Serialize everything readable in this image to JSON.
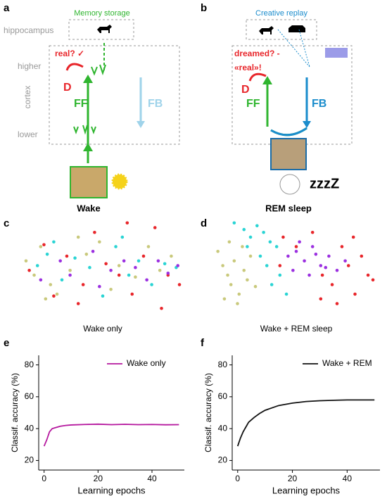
{
  "panel_labels": [
    "a",
    "b",
    "c",
    "d",
    "e",
    "f"
  ],
  "diagram_a": {
    "hippocampus": "hippocampus",
    "higher": "higher",
    "cortex": "cortex",
    "lower": "lower",
    "memory": "Memory storage",
    "real": "real? ✓",
    "d": "D",
    "ff": "FF",
    "fb": "FB",
    "caption": "Wake"
  },
  "diagram_b": {
    "replay": "Creative replay",
    "dreamed": "dreamed? -",
    "real": "«real»!",
    "d": "D",
    "ff": "FF",
    "fb": "FB",
    "caption": "REM sleep",
    "sleep": "zzzZ"
  },
  "chart_data": [
    {
      "type": "scatter",
      "caption": "Wake only",
      "xlim": [
        0,
        100
      ],
      "ylim": [
        0,
        100
      ],
      "series": [
        {
          "color": "#c9c97c",
          "x": [
            3,
            8,
            12,
            18,
            22,
            30,
            40,
            48,
            55,
            60,
            70,
            78,
            85,
            92,
            15,
            35
          ],
          "y": [
            55,
            40,
            70,
            30,
            20,
            45,
            62,
            75,
            25,
            50,
            38,
            70,
            45,
            60,
            15,
            80
          ]
        },
        {
          "color": "#2ad4d4",
          "x": [
            10,
            16,
            25,
            33,
            42,
            50,
            58,
            66,
            72,
            80,
            88,
            95,
            20,
            62
          ],
          "y": [
            50,
            62,
            35,
            58,
            48,
            18,
            70,
            40,
            55,
            30,
            52,
            48,
            75,
            80
          ]
        },
        {
          "color": "#e8262b",
          "x": [
            5,
            14,
            20,
            28,
            38,
            45,
            52,
            60,
            65,
            75,
            82,
            90,
            97,
            35,
            68,
            86
          ],
          "y": [
            45,
            72,
            18,
            60,
            30,
            85,
            52,
            40,
            95,
            60,
            90,
            40,
            30,
            10,
            20,
            5
          ]
        },
        {
          "color": "#9b30e0",
          "x": [
            12,
            24,
            30,
            44,
            55,
            63,
            70,
            77,
            84,
            90,
            96,
            48
          ],
          "y": [
            35,
            55,
            40,
            65,
            45,
            55,
            48,
            35,
            55,
            42,
            50,
            28
          ]
        }
      ]
    },
    {
      "type": "scatter",
      "caption": "Wake + REM sleep",
      "xlim": [
        0,
        100
      ],
      "ylim": [
        0,
        100
      ],
      "series": [
        {
          "color": "#c9c97c",
          "x": [
            2,
            5,
            8,
            10,
            12,
            15,
            18,
            20,
            6,
            14,
            22,
            25,
            9,
            17
          ],
          "y": [
            65,
            50,
            40,
            30,
            55,
            20,
            45,
            35,
            15,
            10,
            60,
            28,
            75,
            70
          ]
        },
        {
          "color": "#2ad4d4",
          "x": [
            12,
            18,
            22,
            26,
            30,
            34,
            38,
            28,
            20,
            40,
            44,
            35,
            32
          ],
          "y": [
            95,
            88,
            80,
            92,
            85,
            75,
            70,
            60,
            70,
            40,
            20,
            30,
            50
          ]
        },
        {
          "color": "#9b30e0",
          "x": [
            45,
            50,
            55,
            60,
            65,
            70,
            75,
            80,
            48,
            58,
            68,
            52,
            62
          ],
          "y": [
            60,
            65,
            55,
            70,
            50,
            60,
            45,
            55,
            45,
            40,
            48,
            75,
            62
          ]
        },
        {
          "color": "#e8262b",
          "x": [
            42,
            50,
            60,
            66,
            72,
            78,
            82,
            86,
            90,
            94,
            97,
            75,
            85,
            65,
            40
          ],
          "y": [
            80,
            70,
            85,
            40,
            30,
            70,
            50,
            20,
            60,
            40,
            35,
            10,
            80,
            15,
            50
          ]
        }
      ]
    },
    {
      "type": "line",
      "xlabel": "Learning epochs",
      "ylabel": "Classif. accuracy (%)",
      "legend": "upper right",
      "xlim": [
        -2,
        52
      ],
      "ylim": [
        14,
        86
      ],
      "xticks": [
        0,
        20,
        40
      ],
      "yticks": [
        20,
        40,
        60,
        80
      ],
      "x": [
        0,
        1,
        2,
        3,
        4,
        5,
        6,
        8,
        10,
        15,
        20,
        25,
        30,
        35,
        40,
        45,
        50
      ],
      "series": [
        {
          "name": "Wake only",
          "color": "#b5179e",
          "values": [
            29,
            33,
            38,
            40,
            40.5,
            41,
            41.5,
            42,
            42.3,
            42.6,
            42.8,
            42.5,
            42.7,
            42.5,
            42.6,
            42.4,
            42.5
          ]
        }
      ]
    },
    {
      "type": "line",
      "xlabel": "Learning epochs",
      "ylabel": "Classif. accuracy (%)",
      "legend": "upper right",
      "xlim": [
        -2,
        52
      ],
      "ylim": [
        14,
        86
      ],
      "xticks": [
        0,
        20,
        40
      ],
      "yticks": [
        20,
        40,
        60,
        80
      ],
      "x": [
        0,
        1,
        2,
        3,
        4,
        5,
        6,
        8,
        10,
        15,
        20,
        25,
        30,
        35,
        40,
        45,
        50
      ],
      "series": [
        {
          "name": "Wake + REM",
          "color": "#111111",
          "values": [
            29,
            34,
            38,
            41,
            44,
            45.5,
            47,
            49.5,
            51.5,
            54.5,
            56,
            57,
            57.5,
            57.8,
            58,
            58,
            58
          ]
        }
      ]
    }
  ]
}
